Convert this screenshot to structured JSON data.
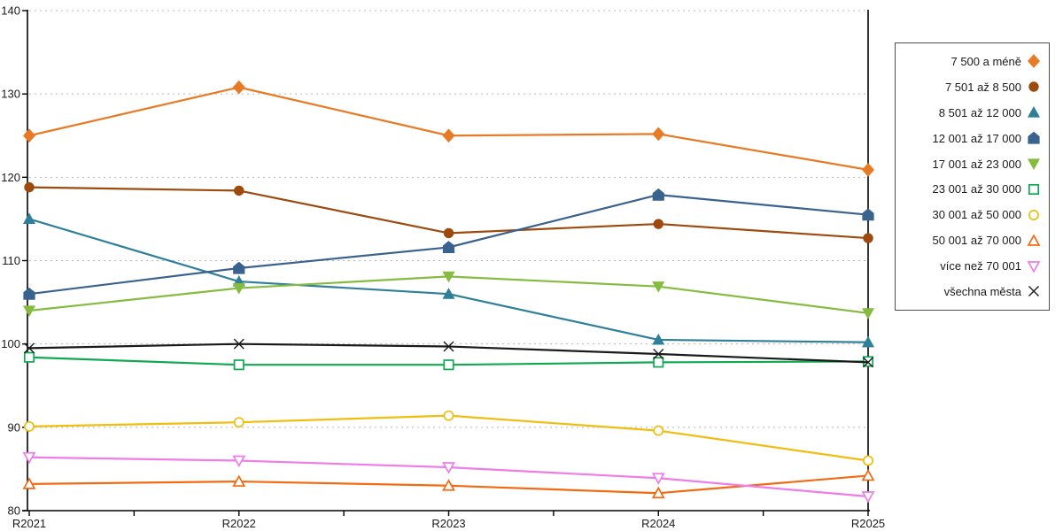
{
  "figure": {
    "background": "#ffffff",
    "plot_border_color": "#000000",
    "gridline_color": "#b8b8b8"
  },
  "chart_data": {
    "type": "line",
    "title": "",
    "xlabel": "",
    "ylabel": "",
    "categories": [
      "R2021",
      "R2022",
      "R2023",
      "R2024",
      "R2025"
    ],
    "ylim": [
      80,
      140
    ],
    "yticks": [
      80,
      90,
      100,
      110,
      120,
      130,
      140
    ],
    "grid": "horizontal-dotted",
    "legend_position": "right",
    "series": [
      {
        "name": "7 500 a méně",
        "color": "#E87A25",
        "marker": "diamond",
        "fill": "solid",
        "values": [
          125.0,
          130.8,
          125.0,
          125.2,
          120.9
        ]
      },
      {
        "name": "7 501 až 8 500",
        "color": "#9C4A0D",
        "marker": "circle",
        "fill": "solid",
        "values": [
          118.8,
          118.4,
          113.3,
          114.4,
          112.7
        ]
      },
      {
        "name": "8 501 až 12 000",
        "color": "#2E7F99",
        "marker": "triangle-up",
        "fill": "solid",
        "values": [
          115.0,
          107.5,
          106.0,
          100.5,
          100.2
        ]
      },
      {
        "name": "12 001 až 17 000",
        "color": "#3A628F",
        "marker": "pentagon",
        "fill": "solid",
        "values": [
          106.0,
          109.1,
          111.6,
          117.9,
          115.5
        ]
      },
      {
        "name": "17 001 až 23 000",
        "color": "#85BB3F",
        "marker": "triangle-down",
        "fill": "solid",
        "values": [
          104.0,
          106.7,
          108.1,
          106.9,
          103.7
        ]
      },
      {
        "name": "23 001 až 30 000",
        "color": "#10A853",
        "marker": "square",
        "fill": "open",
        "values": [
          98.4,
          97.5,
          97.5,
          97.8,
          97.9
        ]
      },
      {
        "name": "30 001 až 50 000",
        "color": "#F1BD0F",
        "marker": "circle",
        "fill": "open",
        "values": [
          90.1,
          90.6,
          91.4,
          89.6,
          86.0
        ]
      },
      {
        "name": "50 001 až 70 000",
        "color": "#F26A12",
        "marker": "triangle-up",
        "fill": "open",
        "values": [
          83.2,
          83.5,
          83.0,
          82.1,
          84.2
        ]
      },
      {
        "name": "více než 70 001",
        "color": "#EE7DE9",
        "marker": "triangle-down",
        "fill": "open",
        "values": [
          86.4,
          86.0,
          85.2,
          83.9,
          81.7
        ]
      },
      {
        "name": "všechna města",
        "color": "#1A1A1A",
        "marker": "x",
        "fill": "line",
        "values": [
          99.5,
          100.0,
          99.7,
          98.8,
          97.8
        ]
      }
    ]
  }
}
